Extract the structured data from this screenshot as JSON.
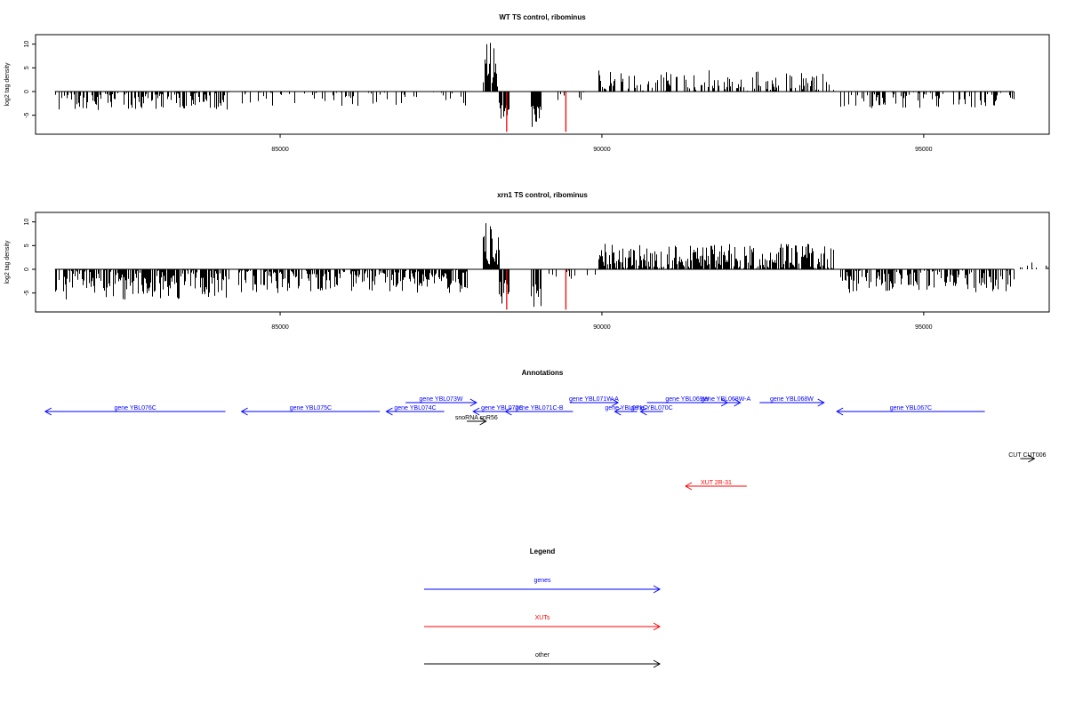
{
  "chart_data": [
    {
      "type": "bar",
      "title": "WT TS control, ribominus",
      "ylabel": "log2 tag density",
      "xlim": [
        81200,
        96950
      ],
      "ylim": [
        -9,
        12
      ],
      "xticks": [
        85000,
        90000,
        95000
      ],
      "yticks": [
        -5,
        0,
        5,
        10
      ],
      "regions": [
        {
          "from": 81500,
          "to": 84200,
          "min": -4,
          "max": 0,
          "gap": 0.4,
          "seed": 11
        },
        {
          "from": 84350,
          "to": 87900,
          "min": -3,
          "max": 0,
          "gap": 0.75,
          "seed": 12
        },
        {
          "from": 88150,
          "to": 88400,
          "min": 1,
          "max": 11,
          "gap": 0.1,
          "seed": 13
        },
        {
          "from": 88400,
          "to": 88550,
          "min": -8,
          "max": -2,
          "gap": 0.1,
          "seed": 14
        },
        {
          "from": 88900,
          "to": 89050,
          "min": -8.5,
          "max": -3,
          "gap": 0.1,
          "seed": 15
        },
        {
          "from": 89050,
          "to": 89900,
          "min": -2,
          "max": 0,
          "gap": 0.85,
          "seed": 16
        },
        {
          "from": 89950,
          "to": 93600,
          "min": 0,
          "max": 4.5,
          "gap": 0.6,
          "seed": 17
        },
        {
          "from": 93700,
          "to": 96400,
          "min": -3.5,
          "max": 0,
          "gap": 0.55,
          "seed": 18
        }
      ],
      "red_marks": [
        {
          "x": 88520,
          "y": -8.5
        },
        {
          "x": 89440,
          "y": -8.5
        }
      ]
    },
    {
      "type": "bar",
      "title": "xrn1 TS control, ribominus",
      "ylabel": "log2 tag density",
      "xlim": [
        81200,
        96950
      ],
      "ylim": [
        -9,
        12
      ],
      "xticks": [
        85000,
        90000,
        95000
      ],
      "yticks": [
        -5,
        0,
        5,
        10
      ],
      "regions": [
        {
          "from": 81500,
          "to": 84200,
          "min": -6.5,
          "max": 0,
          "gap": 0.15,
          "seed": 21
        },
        {
          "from": 84350,
          "to": 87900,
          "min": -5,
          "max": 0,
          "gap": 0.25,
          "seed": 22
        },
        {
          "from": 88150,
          "to": 88400,
          "min": 1,
          "max": 10.5,
          "gap": 0.1,
          "seed": 23
        },
        {
          "from": 88400,
          "to": 88550,
          "min": -8,
          "max": -2,
          "gap": 0.1,
          "seed": 24
        },
        {
          "from": 88900,
          "to": 89050,
          "min": -8.5,
          "max": -3,
          "gap": 0.1,
          "seed": 25
        },
        {
          "from": 89050,
          "to": 89900,
          "min": -2,
          "max": 0,
          "gap": 0.8,
          "seed": 26
        },
        {
          "from": 89950,
          "to": 93600,
          "min": 0,
          "max": 5.5,
          "gap": 0.15,
          "seed": 27
        },
        {
          "from": 93700,
          "to": 96400,
          "min": -5,
          "max": 0,
          "gap": 0.35,
          "seed": 28
        },
        {
          "from": 96500,
          "to": 96950,
          "min": 0,
          "max": 1.5,
          "gap": 0.7,
          "seed": 29
        }
      ],
      "red_marks": [
        {
          "x": 88520,
          "y": -8.5
        },
        {
          "x": 89440,
          "y": -8.5
        }
      ]
    }
  ],
  "annotations": {
    "title": "Annotations",
    "colors": {
      "genes": "#0000ff",
      "XUTs": "#ff0000",
      "other": "#000000"
    },
    "features": [
      {
        "label": "gene YBL076C",
        "type": "genes",
        "start": 81350,
        "end": 84150,
        "strand": "-",
        "row": 1
      },
      {
        "label": "gene YBL075C",
        "type": "genes",
        "start": 84400,
        "end": 86550,
        "strand": "-",
        "row": 1
      },
      {
        "label": "gene YBL074C",
        "type": "genes",
        "start": 86650,
        "end": 87550,
        "strand": "-",
        "row": 1
      },
      {
        "label": "gene YBL073W",
        "type": "genes",
        "start": 86950,
        "end": 88050,
        "strand": "+",
        "row": 0
      },
      {
        "label": "snoRNA snR56",
        "type": "other",
        "start": 87900,
        "end": 88200,
        "strand": "+",
        "row": 2
      },
      {
        "label": "gene YBL072C",
        "type": "genes",
        "start": 88000,
        "end": 88900,
        "strand": "-",
        "row": 1
      },
      {
        "label": "gene YBL071C-B",
        "type": "genes",
        "start": 88500,
        "end": 89550,
        "strand": "-",
        "row": 1
      },
      {
        "label": "gene YBL071W-A",
        "type": "genes",
        "start": 89500,
        "end": 90250,
        "strand": "+",
        "row": 0
      },
      {
        "label": "gene YBL071C",
        "type": "genes",
        "start": 90200,
        "end": 90550,
        "strand": "-",
        "row": 1
      },
      {
        "label": "gene YBL070C",
        "type": "genes",
        "start": 90600,
        "end": 90950,
        "strand": "-",
        "row": 1
      },
      {
        "label": "gene YBL069W",
        "type": "genes",
        "start": 90700,
        "end": 91950,
        "strand": "+",
        "row": 0
      },
      {
        "label": "gene YBL068W-A",
        "type": "genes",
        "start": 91700,
        "end": 92150,
        "strand": "+",
        "row": 0
      },
      {
        "label": "gene YBL068W",
        "type": "genes",
        "start": 92450,
        "end": 93450,
        "strand": "+",
        "row": 0
      },
      {
        "label": "gene YBL067C",
        "type": "genes",
        "start": 93650,
        "end": 95950,
        "strand": "-",
        "row": 1
      },
      {
        "label": "CUT CUT006",
        "type": "other",
        "start": 96500,
        "end": 96720,
        "strand": "+",
        "row": 4
      },
      {
        "label": "XUT 2R-31",
        "type": "XUTs",
        "start": 91300,
        "end": 92250,
        "strand": "-",
        "row": 5
      }
    ]
  },
  "legend": {
    "title": "Legend",
    "items": [
      {
        "label": "genes",
        "color": "#0000ff"
      },
      {
        "label": "XUTs",
        "color": "#ff0000"
      },
      {
        "label": "other",
        "color": "#000000"
      }
    ]
  }
}
